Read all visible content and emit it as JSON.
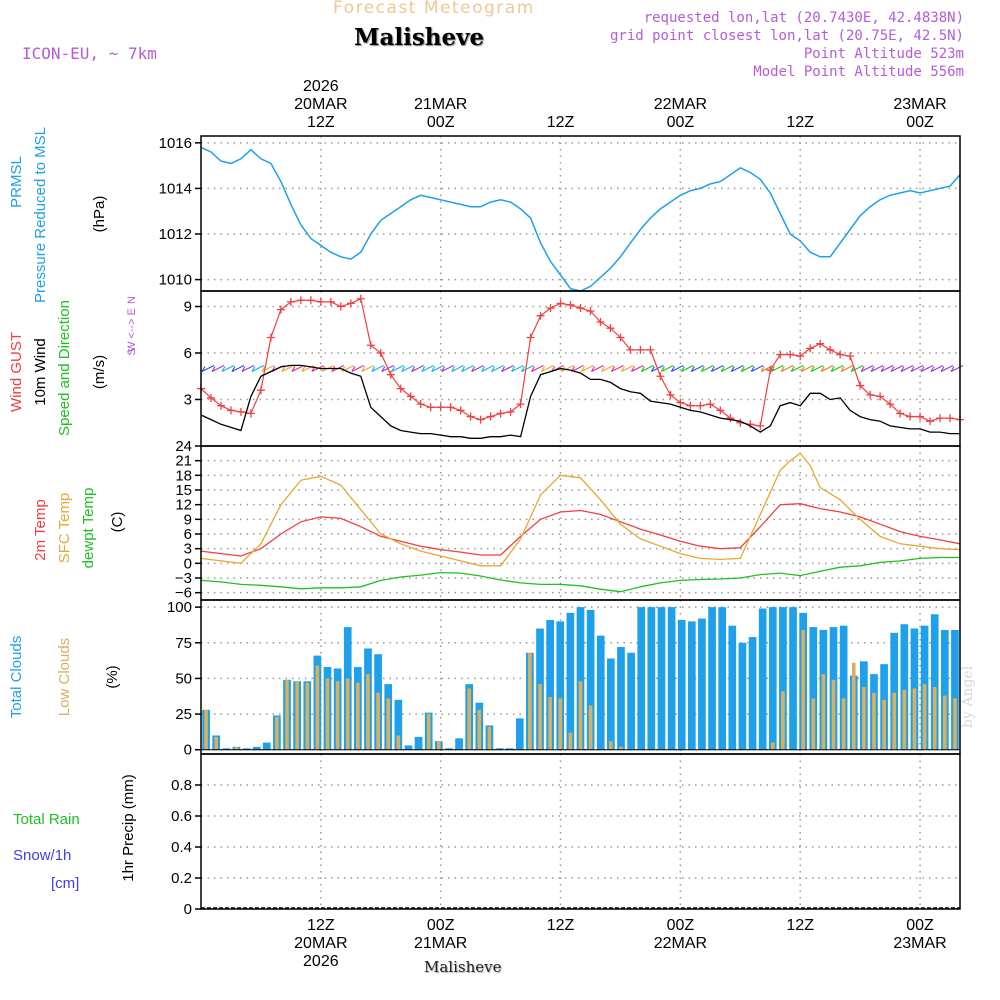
{
  "header": {
    "title": "Forecast Meteogram",
    "location": "Malisheve",
    "model": "ICON-EU, ~ 7km",
    "requested": "requested lon,lat (20.7430E, 42.4838N)",
    "grid_point": "grid point closest lon,lat (20.75E, 42.5N)",
    "point_altitude": "Point Altitude 523m",
    "model_altitude": "Model Point Altitude 556m"
  },
  "footer": {
    "location": "Malisheve",
    "watermark": "by Angel"
  },
  "colors": {
    "pressure": "#1ea0ea",
    "gust": "#f04040",
    "wind": "#000000",
    "wind_dir": "#20c020",
    "compass": "#b45cd8",
    "temp": "#f04040",
    "sfc_temp": "#e8a830",
    "dewpt": "#20c020",
    "total_clouds": "#1ea0ea",
    "low_clouds": "#d8b060",
    "rain": "#20c020",
    "snow": "#4040e0"
  },
  "time_axis": {
    "top": [
      {
        "t": 12,
        "lines": [
          "2026",
          "20MAR",
          "12Z"
        ]
      },
      {
        "t": 24,
        "lines": [
          "21MAR",
          "00Z"
        ]
      },
      {
        "t": 36,
        "lines": [
          "12Z"
        ]
      },
      {
        "t": 48,
        "lines": [
          "22MAR",
          "00Z"
        ]
      },
      {
        "t": 60,
        "lines": [
          "12Z"
        ]
      },
      {
        "t": 72,
        "lines": [
          "23MAR",
          "00Z"
        ]
      }
    ],
    "bottom": [
      {
        "t": 12,
        "lines": [
          "12Z",
          "20MAR",
          "2026"
        ]
      },
      {
        "t": 24,
        "lines": [
          "00Z",
          "21MAR"
        ]
      },
      {
        "t": 36,
        "lines": [
          "12Z"
        ]
      },
      {
        "t": 48,
        "lines": [
          "00Z",
          "22MAR"
        ]
      },
      {
        "t": 60,
        "lines": [
          "12Z"
        ]
      },
      {
        "t": 72,
        "lines": [
          "00Z",
          "23MAR"
        ]
      }
    ]
  },
  "chart_data": [
    {
      "type": "line",
      "title": "PRMSL Pressure Reduced to MSL",
      "ylabel_lines": [
        "PRMSL",
        "Pressure Reduced to MSL"
      ],
      "unit": "(hPa)",
      "ylim": [
        1009.5,
        1016.3
      ],
      "yticks": [
        1010,
        1012,
        1014,
        1016
      ],
      "series": [
        {
          "name": "PRMSL",
          "x": [
            0,
            1,
            2,
            3,
            4,
            5,
            6,
            7,
            8,
            9,
            10,
            11,
            12,
            13,
            14,
            15,
            16,
            17,
            18,
            19,
            20,
            21,
            22,
            23,
            24,
            25,
            26,
            27,
            28,
            29,
            30,
            31,
            32,
            33,
            34,
            35,
            36,
            37,
            38,
            39,
            40,
            41,
            42,
            43,
            44,
            45,
            46,
            47,
            48,
            49,
            50,
            51,
            52,
            53,
            54,
            55,
            56,
            57,
            58,
            59,
            60,
            61,
            62,
            63,
            64,
            65,
            66,
            67,
            68,
            69,
            70,
            71,
            72,
            73,
            74,
            75,
            76
          ],
          "values": [
            1015.8,
            1015.6,
            1015.2,
            1015.1,
            1015.3,
            1015.7,
            1015.3,
            1015.1,
            1014.3,
            1013.3,
            1012.4,
            1011.8,
            1011.5,
            1011.2,
            1011.0,
            1010.9,
            1011.2,
            1012.0,
            1012.6,
            1012.9,
            1013.2,
            1013.5,
            1013.7,
            1013.6,
            1013.5,
            1013.4,
            1013.3,
            1013.2,
            1013.2,
            1013.4,
            1013.5,
            1013.4,
            1013.1,
            1012.7,
            1011.6,
            1010.8,
            1010.2,
            1009.6,
            1009.5,
            1009.7,
            1010.1,
            1010.5,
            1011.0,
            1011.6,
            1012.2,
            1012.7,
            1013.1,
            1013.4,
            1013.7,
            1013.9,
            1014.0,
            1014.2,
            1014.3,
            1014.6,
            1014.9,
            1014.7,
            1014.4,
            1013.8,
            1012.9,
            1012.0,
            1011.7,
            1011.2,
            1011.0,
            1011.0,
            1011.6,
            1012.2,
            1012.8,
            1013.2,
            1013.5,
            1013.7,
            1013.8,
            1013.9,
            1013.8,
            1013.9,
            1014.0,
            1014.1,
            1014.6
          ]
        }
      ]
    },
    {
      "type": "line",
      "title": "Wind GUST / 10m Wind Speed and Direction",
      "ylabel_lines": [
        "Wind GUST",
        "10m Wind",
        "Speed and Direction"
      ],
      "unit": "(m/s)",
      "compass": [
        "N",
        "W <--> E",
        "S"
      ],
      "ylim": [
        0,
        10
      ],
      "yticks": [
        3,
        6,
        9
      ],
      "series": [
        {
          "name": "Wind GUST",
          "x": [
            0,
            1,
            2,
            3,
            4,
            5,
            6,
            7,
            8,
            9,
            10,
            11,
            12,
            13,
            14,
            15,
            16,
            17,
            18,
            19,
            20,
            21,
            22,
            23,
            24,
            25,
            26,
            27,
            28,
            29,
            30,
            31,
            32,
            33,
            34,
            35,
            36,
            37,
            38,
            39,
            40,
            41,
            42,
            43,
            44,
            45,
            46,
            47,
            48,
            49,
            50,
            51,
            52,
            53,
            54,
            55,
            56,
            57,
            58,
            59,
            60,
            61,
            62,
            63,
            64,
            65,
            66,
            67,
            68,
            69,
            70,
            71,
            72,
            73,
            74,
            75,
            76
          ],
          "values": [
            3.7,
            3.1,
            2.6,
            2.3,
            2.2,
            2.1,
            3.6,
            7.0,
            8.8,
            9.3,
            9.4,
            9.4,
            9.3,
            9.3,
            9.0,
            9.2,
            9.5,
            6.5,
            6.0,
            4.6,
            3.7,
            3.2,
            2.7,
            2.5,
            2.5,
            2.5,
            2.3,
            1.9,
            1.7,
            1.9,
            2.1,
            2.2,
            2.7,
            7.0,
            8.4,
            8.9,
            9.2,
            9.1,
            8.9,
            8.7,
            8.0,
            7.6,
            7.0,
            6.2,
            6.2,
            6.2,
            4.5,
            3.3,
            2.8,
            2.6,
            2.6,
            2.7,
            2.3,
            1.8,
            1.5,
            1.4,
            1.3,
            4.9,
            5.9,
            5.9,
            5.8,
            6.3,
            6.6,
            6.2,
            5.9,
            5.8,
            3.9,
            3.3,
            3.2,
            2.7,
            2.1,
            1.9,
            1.9,
            1.6,
            1.8,
            1.8,
            1.7
          ]
        },
        {
          "name": "10m Wind",
          "x": [
            0,
            1,
            2,
            3,
            4,
            5,
            6,
            7,
            8,
            9,
            10,
            11,
            12,
            13,
            14,
            15,
            16,
            17,
            18,
            19,
            20,
            21,
            22,
            23,
            24,
            25,
            26,
            27,
            28,
            29,
            30,
            31,
            32,
            33,
            34,
            35,
            36,
            37,
            38,
            39,
            40,
            41,
            42,
            43,
            44,
            45,
            46,
            47,
            48,
            49,
            50,
            51,
            52,
            53,
            54,
            55,
            56,
            57,
            58,
            59,
            60,
            61,
            62,
            63,
            64,
            65,
            66,
            67,
            68,
            69,
            70,
            71,
            72,
            73,
            74,
            75,
            76
          ],
          "values": [
            2.0,
            1.7,
            1.4,
            1.2,
            1.0,
            3.2,
            4.5,
            4.8,
            5.1,
            5.2,
            5.2,
            5.1,
            5.0,
            5.0,
            5.0,
            4.7,
            4.5,
            2.5,
            1.9,
            1.3,
            1.0,
            0.9,
            0.8,
            0.8,
            0.7,
            0.6,
            0.6,
            0.5,
            0.5,
            0.6,
            0.6,
            0.7,
            0.6,
            3.2,
            4.6,
            4.8,
            5.0,
            4.9,
            4.7,
            4.3,
            4.3,
            4.1,
            3.7,
            3.5,
            3.4,
            2.9,
            2.8,
            2.7,
            2.5,
            2.3,
            2.2,
            2.0,
            1.8,
            1.7,
            1.6,
            1.3,
            0.9,
            1.3,
            2.6,
            2.8,
            2.6,
            3.4,
            3.4,
            3.0,
            3.1,
            2.3,
            1.9,
            1.7,
            1.6,
            1.3,
            1.2,
            1.1,
            1.1,
            0.9,
            0.9,
            0.8,
            0.8
          ]
        }
      ]
    },
    {
      "type": "line",
      "title": "2m Temp / SFC Temp / dewpt Temp",
      "ylabel_lines": [
        "2m Temp",
        "SFC Temp",
        "dewpt Temp"
      ],
      "unit": "(C)",
      "ylim": [
        -7.5,
        24
      ],
      "yticks": [
        -6,
        -3,
        0,
        3,
        6,
        9,
        12,
        15,
        18,
        21,
        24
      ],
      "series": [
        {
          "name": "2m Temp",
          "x": [
            0,
            2,
            4,
            6,
            8,
            10,
            12,
            14,
            16,
            18,
            20,
            22,
            24,
            26,
            28,
            30,
            32,
            34,
            36,
            38,
            40,
            42,
            44,
            46,
            48,
            50,
            52,
            54,
            56,
            58,
            60,
            62,
            64,
            66,
            68,
            70,
            72,
            74,
            76
          ],
          "values": [
            2.5,
            2.0,
            1.5,
            3.0,
            6.0,
            8.5,
            9.5,
            9.2,
            7.5,
            5.5,
            4.5,
            3.5,
            2.8,
            2.3,
            1.7,
            1.7,
            5.5,
            9.0,
            10.5,
            10.8,
            10.0,
            8.5,
            7.0,
            5.8,
            4.5,
            3.5,
            3.0,
            3.2,
            7.5,
            12.0,
            12.2,
            11.2,
            10.5,
            9.5,
            8.0,
            6.5,
            5.5,
            4.8,
            4.0
          ]
        },
        {
          "name": "SFC Temp",
          "x": [
            0,
            2,
            4,
            6,
            8,
            10,
            12,
            14,
            16,
            18,
            20,
            22,
            24,
            26,
            28,
            30,
            32,
            34,
            36,
            38,
            40,
            42,
            44,
            46,
            48,
            50,
            52,
            54,
            56,
            58,
            59,
            60,
            61,
            62,
            64,
            66,
            68,
            70,
            72,
            74,
            76
          ],
          "values": [
            1.0,
            0.5,
            0.0,
            4.0,
            12.0,
            17.0,
            17.8,
            16.0,
            11.0,
            6.0,
            4.0,
            2.5,
            1.5,
            0.5,
            -0.5,
            -0.5,
            5.0,
            14.0,
            18.0,
            17.5,
            13.0,
            8.0,
            5.0,
            3.5,
            2.0,
            1.0,
            0.8,
            1.0,
            10.0,
            19.0,
            21.0,
            22.5,
            20.0,
            15.5,
            13.0,
            9.0,
            5.5,
            4.0,
            3.5,
            3.0,
            2.8
          ]
        },
        {
          "name": "dewpt Temp",
          "x": [
            0,
            2,
            4,
            6,
            8,
            10,
            12,
            14,
            16,
            18,
            20,
            22,
            24,
            26,
            28,
            30,
            32,
            34,
            36,
            38,
            40,
            42,
            44,
            46,
            48,
            50,
            52,
            54,
            56,
            58,
            60,
            62,
            64,
            66,
            68,
            70,
            72,
            74,
            76
          ],
          "values": [
            -3.5,
            -3.8,
            -4.3,
            -4.5,
            -4.8,
            -5.2,
            -5.0,
            -5.0,
            -4.8,
            -3.5,
            -2.8,
            -2.4,
            -1.9,
            -2.0,
            -2.6,
            -3.4,
            -4.0,
            -4.3,
            -4.3,
            -4.6,
            -5.3,
            -5.8,
            -4.8,
            -4.0,
            -3.5,
            -3.3,
            -3.2,
            -3.0,
            -2.3,
            -2.0,
            -2.5,
            -1.6,
            -0.8,
            -0.5,
            0.2,
            0.5,
            1.0,
            1.2,
            1.2
          ]
        }
      ]
    },
    {
      "type": "bar",
      "title": "Total Clouds / Low Clouds",
      "ylabel_lines": [
        "Total Clouds",
        "Low Clouds"
      ],
      "unit": "(%)",
      "ylim": [
        -3,
        105
      ],
      "yticks": [
        0,
        25,
        50,
        75,
        100
      ],
      "series": [
        {
          "name": "Total Clouds",
          "values": [
            28,
            10,
            1,
            2,
            1,
            2,
            5,
            24,
            49,
            48,
            48,
            66,
            58,
            57,
            86,
            58,
            71,
            67,
            46,
            35,
            3,
            9,
            26,
            6,
            1,
            8,
            46,
            33,
            17,
            1,
            1,
            22,
            68,
            85,
            91,
            90,
            96,
            100,
            98,
            80,
            64,
            72,
            68,
            100,
            100,
            100,
            100,
            91,
            90,
            92,
            100,
            100,
            87,
            75,
            79,
            99,
            100,
            100,
            100,
            96,
            86,
            84,
            86,
            87,
            52,
            62,
            53,
            60,
            82,
            88,
            85,
            87,
            95,
            84,
            84
          ]
        },
        {
          "name": "Low Clouds",
          "values": [
            28,
            9,
            0,
            2,
            0,
            0,
            0,
            23,
            49,
            48,
            47,
            59,
            50,
            48,
            50,
            47,
            53,
            40,
            36,
            10,
            0,
            0,
            25,
            6,
            0,
            0,
            43,
            28,
            16,
            0,
            0,
            0,
            68,
            46,
            37,
            36,
            12,
            48,
            31,
            0,
            6,
            2,
            0,
            0,
            0,
            0,
            0,
            0,
            0,
            0,
            0,
            0,
            0,
            0,
            0,
            0,
            5,
            41,
            0,
            84,
            36,
            53,
            49,
            36,
            61,
            44,
            40,
            35,
            40,
            42,
            43,
            46,
            44,
            38,
            36
          ]
        }
      ]
    },
    {
      "type": "bar",
      "title": "Total Rain / Snow/1h",
      "ylabel_lines": [
        "1hr Precip (mm)"
      ],
      "side_labels": [
        "Total  Rain",
        "Snow/1h",
        "[cm]"
      ],
      "ylim": [
        0,
        1.0
      ],
      "yticks": [
        0,
        0.2,
        0.4,
        0.6,
        0.8
      ],
      "ytick_labels": [
        "0",
        "0.2",
        "0.4",
        "0.6",
        "0.8"
      ],
      "series": [
        {
          "name": "Total Rain",
          "values": []
        },
        {
          "name": "Snow/1h",
          "values": []
        }
      ]
    }
  ]
}
